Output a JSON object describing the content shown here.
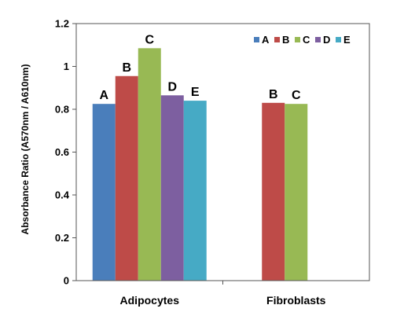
{
  "chart_data": {
    "type": "bar",
    "categories": [
      "Adipocytes",
      "Fibroblasts"
    ],
    "series": [
      {
        "name": "A",
        "color": "#4a7ebb",
        "values": [
          0.825,
          null
        ],
        "labels": [
          "A",
          ""
        ]
      },
      {
        "name": "B",
        "color": "#be4b48",
        "values": [
          0.955,
          0.83
        ],
        "labels": [
          "B",
          "B"
        ]
      },
      {
        "name": "C",
        "color": "#98b954",
        "values": [
          1.085,
          0.825
        ],
        "labels": [
          "C",
          "C"
        ]
      },
      {
        "name": "D",
        "color": "#7d5fa0",
        "values": [
          0.865,
          null
        ],
        "labels": [
          "D",
          ""
        ]
      },
      {
        "name": "E",
        "color": "#46aac5",
        "values": [
          0.84,
          null
        ],
        "labels": [
          "E",
          ""
        ]
      }
    ],
    "ylabel": "Absorbance Ratio (A570nm / A610nm)",
    "xlabel": "",
    "title": "",
    "ylim": [
      0,
      1.2
    ],
    "yticks": [
      "0",
      "0.2",
      "0.4",
      "0.6",
      "0.8",
      "1",
      "1.2"
    ],
    "grid": false,
    "legend_position": "top-right"
  }
}
